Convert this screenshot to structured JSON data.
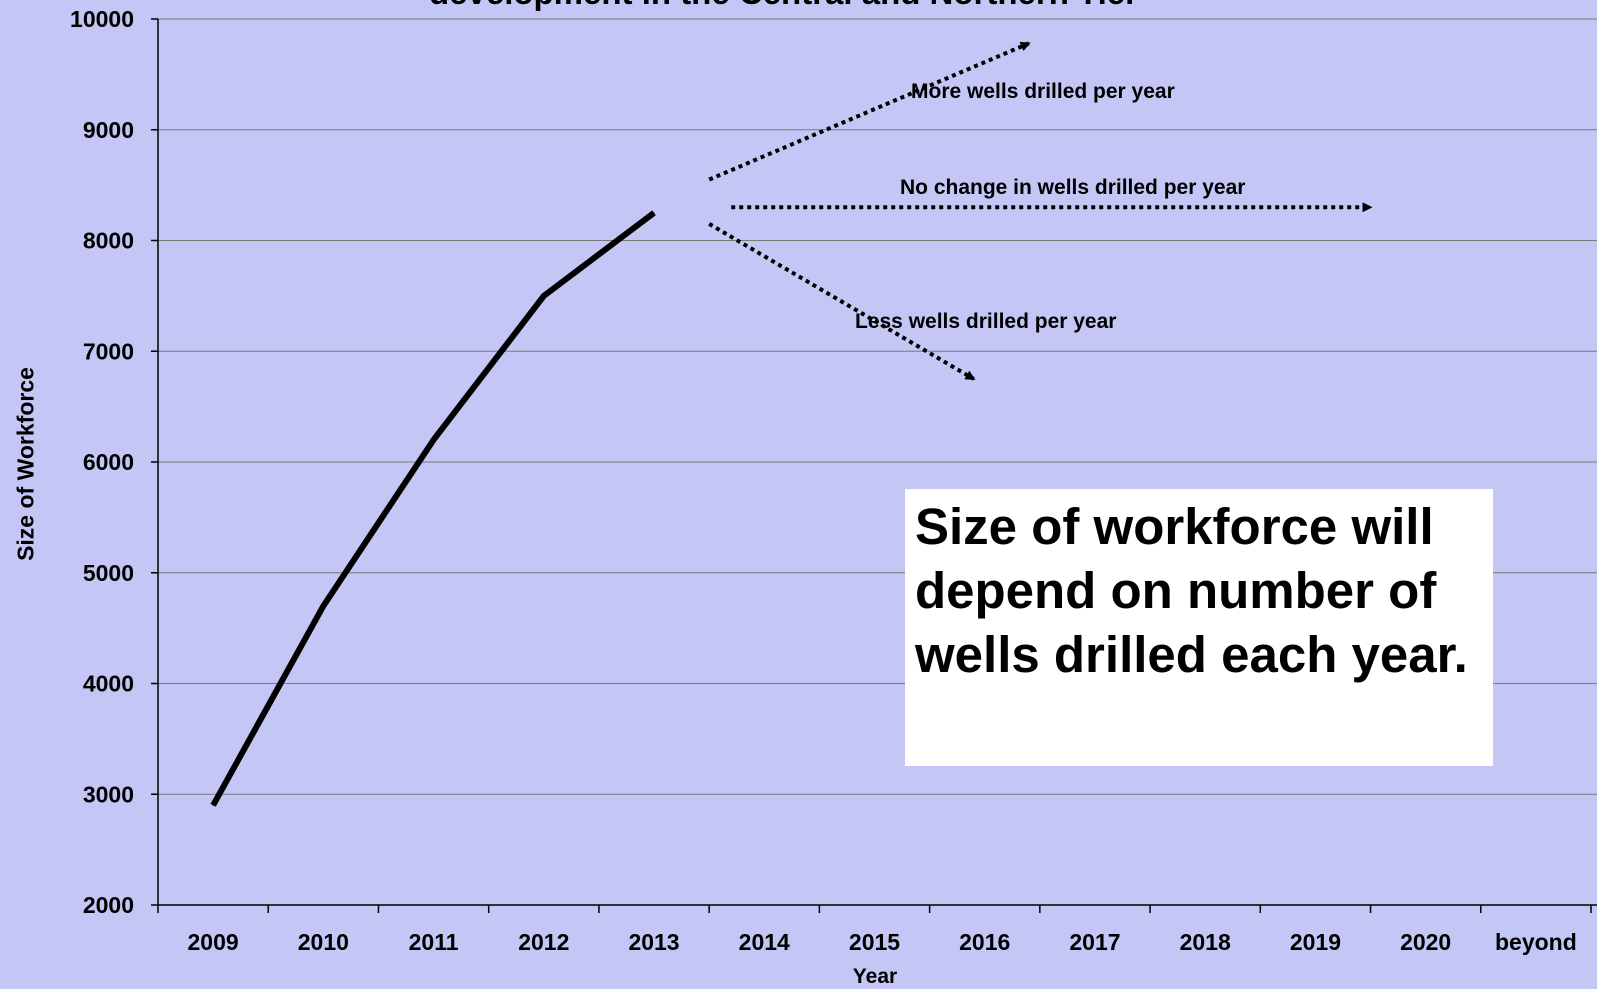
{
  "chart_data": {
    "type": "line",
    "title": "development  in the Central and Northern Tier",
    "xlabel": "Year",
    "ylabel": "Size of Workforce",
    "categories": [
      "2009",
      "2010",
      "2011",
      "2012",
      "2013",
      "2014",
      "2015",
      "2016",
      "2017",
      "2018",
      "2019",
      "2020",
      "beyond"
    ],
    "ylim": [
      2000,
      10000
    ],
    "yticks": [
      2000,
      3000,
      4000,
      5000,
      6000,
      7000,
      8000,
      9000,
      10000
    ],
    "grid": true,
    "series": [
      {
        "values": [
          2900,
          4700,
          6200,
          7500,
          8250,
          null,
          null,
          null,
          null,
          null,
          null,
          null,
          null
        ],
        "color": "#000000"
      }
    ],
    "scenarios": [
      {
        "label": "More wells drilled per year",
        "from": [
          4.5,
          8550
        ],
        "to": [
          7.4,
          9780
        ]
      },
      {
        "label": "No change in wells drilled per year",
        "from": [
          4.7,
          8300
        ],
        "to": [
          10.5,
          8300
        ]
      },
      {
        "label": "Less wells drilled per year",
        "from": [
          4.5,
          8150
        ],
        "to": [
          6.9,
          6750
        ]
      }
    ],
    "note": "Size of workforce will depend on number of wells drilled each year."
  },
  "colors": {
    "background": "#c4c7f5",
    "line": "#000000",
    "gridline": "#7a7a7a",
    "note_background": "#ffffff"
  }
}
